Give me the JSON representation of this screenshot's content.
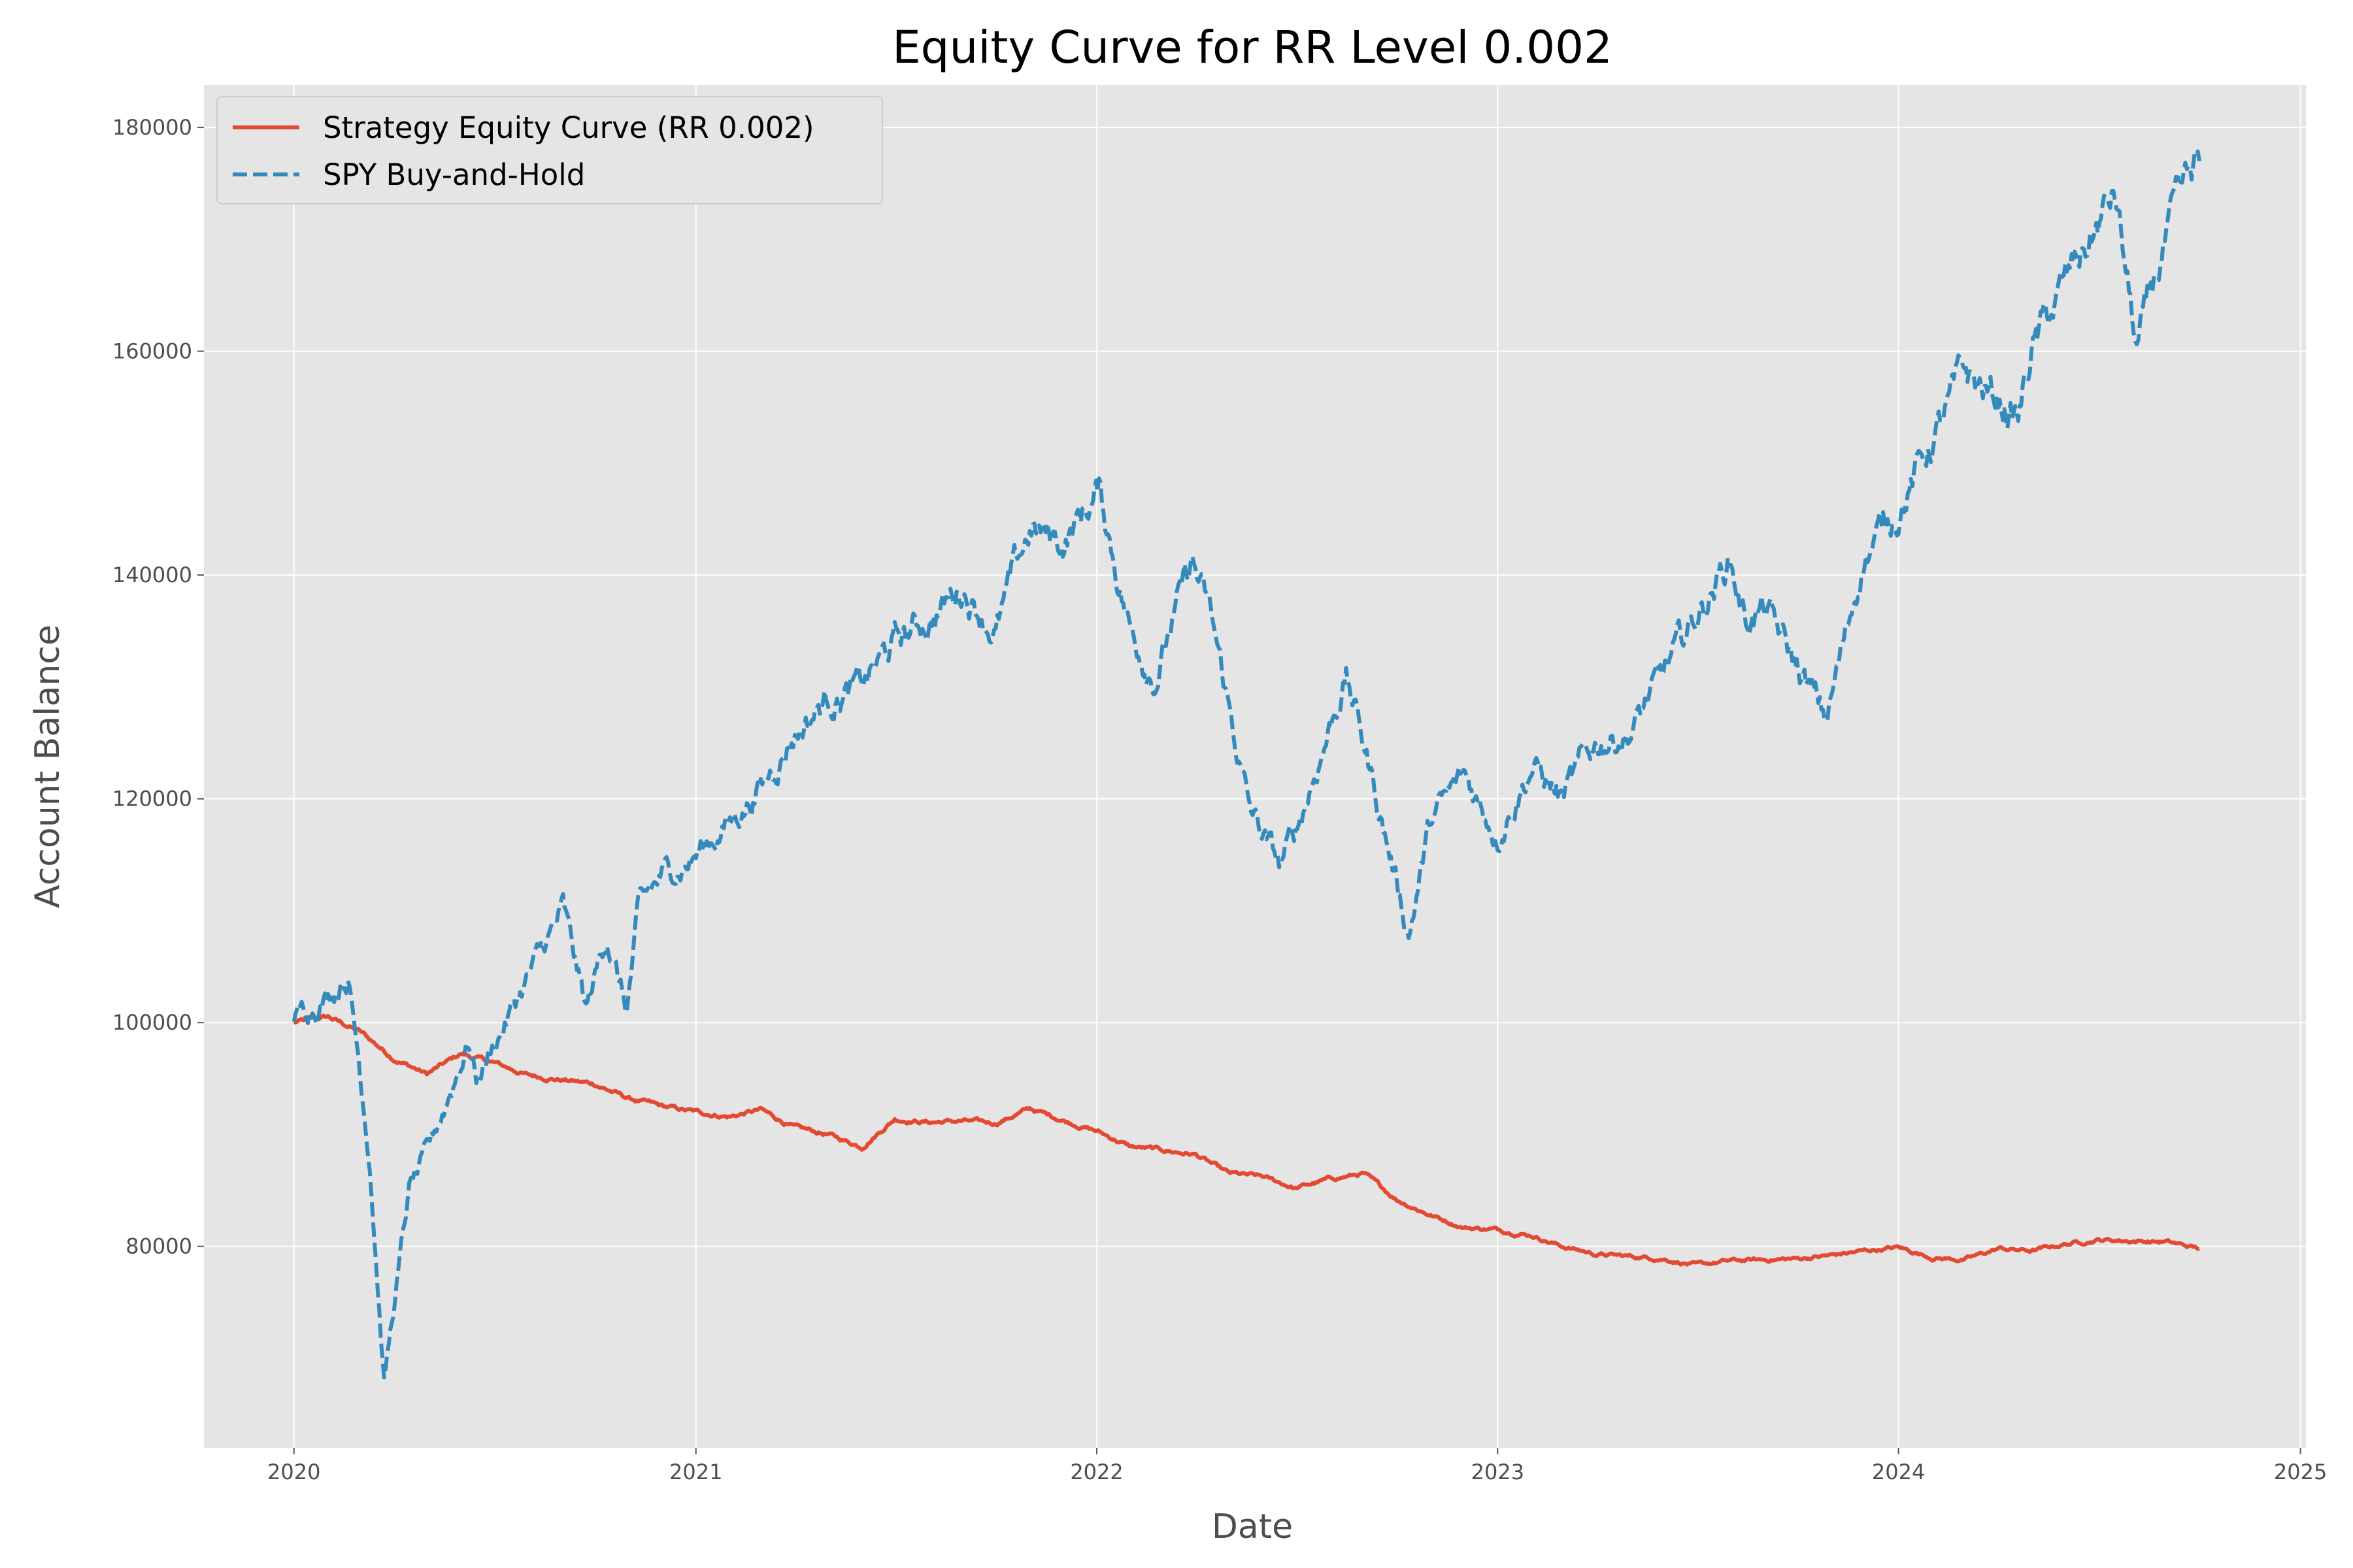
{
  "chart_data": {
    "type": "line",
    "title": "Equity Curve for RR Level 0.002",
    "xlabel": "Date",
    "ylabel": "Account Balance",
    "x_tick_labels": [
      "2020",
      "2021",
      "2022",
      "2023",
      "2024",
      "2025"
    ],
    "y_tick_labels": [
      "80000",
      "100000",
      "120000",
      "140000",
      "160000",
      "180000"
    ],
    "xlim": [
      "2019-10-11",
      "2025-01-06"
    ],
    "ylim": [
      62000,
      183800
    ],
    "grid": true,
    "legend_position": "upper-left",
    "colors": {
      "background": "#E5E5E5",
      "grid": "#FFFFFF",
      "strategy": "#E24A33",
      "spy": "#348ABD"
    },
    "series": [
      {
        "name": "Strategy Equity Curve (RR 0.002)",
        "style": "solid",
        "x": [
          "2020-01-01",
          "2020-02-01",
          "2020-03-01",
          "2020-04-01",
          "2020-05-01",
          "2020-06-01",
          "2020-07-01",
          "2020-08-01",
          "2020-09-01",
          "2020-10-01",
          "2020-11-01",
          "2020-12-01",
          "2021-01-01",
          "2021-02-01",
          "2021-03-01",
          "2021-04-01",
          "2021-05-01",
          "2021-06-01",
          "2021-07-01",
          "2021-08-01",
          "2021-09-01",
          "2021-10-01",
          "2021-11-01",
          "2021-12-01",
          "2022-01-01",
          "2022-02-01",
          "2022-03-01",
          "2022-04-01",
          "2022-05-01",
          "2022-06-01",
          "2022-07-01",
          "2022-08-01",
          "2022-09-01",
          "2022-10-01",
          "2022-11-01",
          "2022-12-01",
          "2023-01-01",
          "2023-02-01",
          "2023-03-01",
          "2023-04-01",
          "2023-05-01",
          "2023-06-01",
          "2023-07-01",
          "2023-08-01",
          "2023-09-01",
          "2023-10-01",
          "2023-11-01",
          "2023-12-01",
          "2024-01-01",
          "2024-02-01",
          "2024-03-01",
          "2024-04-01",
          "2024-05-01",
          "2024-06-01",
          "2024-07-01",
          "2024-08-01",
          "2024-09-01",
          "2024-10-01"
        ],
        "values": [
          100000,
          100500,
          99200,
          96800,
          95400,
          97200,
          96400,
          95300,
          94900,
          94500,
          93200,
          92500,
          92000,
          91600,
          92200,
          90600,
          90000,
          88900,
          91400,
          91100,
          91200,
          91000,
          92300,
          91300,
          90300,
          88900,
          88600,
          88200,
          86500,
          86200,
          85200,
          86000,
          86500,
          84200,
          82800,
          81700,
          81500,
          81000,
          80000,
          79300,
          79100,
          78900,
          78300,
          78700,
          78800,
          78900,
          79200,
          79600,
          79900,
          79000,
          78800,
          79800,
          79600,
          80200,
          80600,
          80500,
          80400,
          79800
        ]
      },
      {
        "name": "SPY Buy-and-Hold",
        "style": "dashed",
        "x": [
          "2020-01-01",
          "2020-01-15",
          "2020-02-01",
          "2020-02-19",
          "2020-03-01",
          "2020-03-10",
          "2020-03-23",
          "2020-04-15",
          "2020-05-01",
          "2020-06-08",
          "2020-06-15",
          "2020-07-01",
          "2020-08-01",
          "2020-09-02",
          "2020-09-23",
          "2020-10-12",
          "2020-10-30",
          "2020-11-10",
          "2020-12-01",
          "2021-01-01",
          "2021-02-01",
          "2021-03-01",
          "2021-04-01",
          "2021-05-01",
          "2021-06-01",
          "2021-07-01",
          "2021-08-01",
          "2021-09-01",
          "2021-10-01",
          "2021-11-01",
          "2021-12-01",
          "2022-01-03",
          "2022-02-01",
          "2022-02-23",
          "2022-03-29",
          "2022-04-15",
          "2022-05-20",
          "2022-06-16",
          "2022-07-01",
          "2022-08-16",
          "2022-09-01",
          "2022-09-30",
          "2022-10-12",
          "2022-11-01",
          "2022-12-01",
          "2023-01-01",
          "2023-02-01",
          "2023-03-01",
          "2023-04-01",
          "2023-05-01",
          "2023-06-01",
          "2023-07-31",
          "2023-08-15",
          "2023-09-01",
          "2023-10-27",
          "2023-11-15",
          "2023-12-01",
          "2024-01-01",
          "2024-02-01",
          "2024-03-01",
          "2024-04-19",
          "2024-05-01",
          "2024-06-01",
          "2024-07-16",
          "2024-08-05",
          "2024-09-01",
          "2024-10-01"
        ],
        "values": [
          100000,
          101500,
          102500,
          104500,
          96000,
          88000,
          68000,
          85000,
          88000,
          98500,
          95000,
          98000,
          104000,
          110000,
          101000,
          108000,
          101000,
          110000,
          113000,
          115000,
          118000,
          121000,
          126000,
          129000,
          130000,
          134000,
          136000,
          139000,
          135000,
          144000,
          143000,
          147500,
          135000,
          131000,
          141000,
          136000,
          119000,
          114000,
          117000,
          131000,
          125000,
          113000,
          108000,
          118000,
          122000,
          117000,
          123000,
          120000,
          125000,
          126000,
          131000,
          141500,
          136000,
          137000,
          127000,
          135000,
          142000,
          146000,
          152000,
          158000,
          154000,
          160000,
          166000,
          174000,
          160000,
          170000,
          177000
        ]
      }
    ]
  }
}
